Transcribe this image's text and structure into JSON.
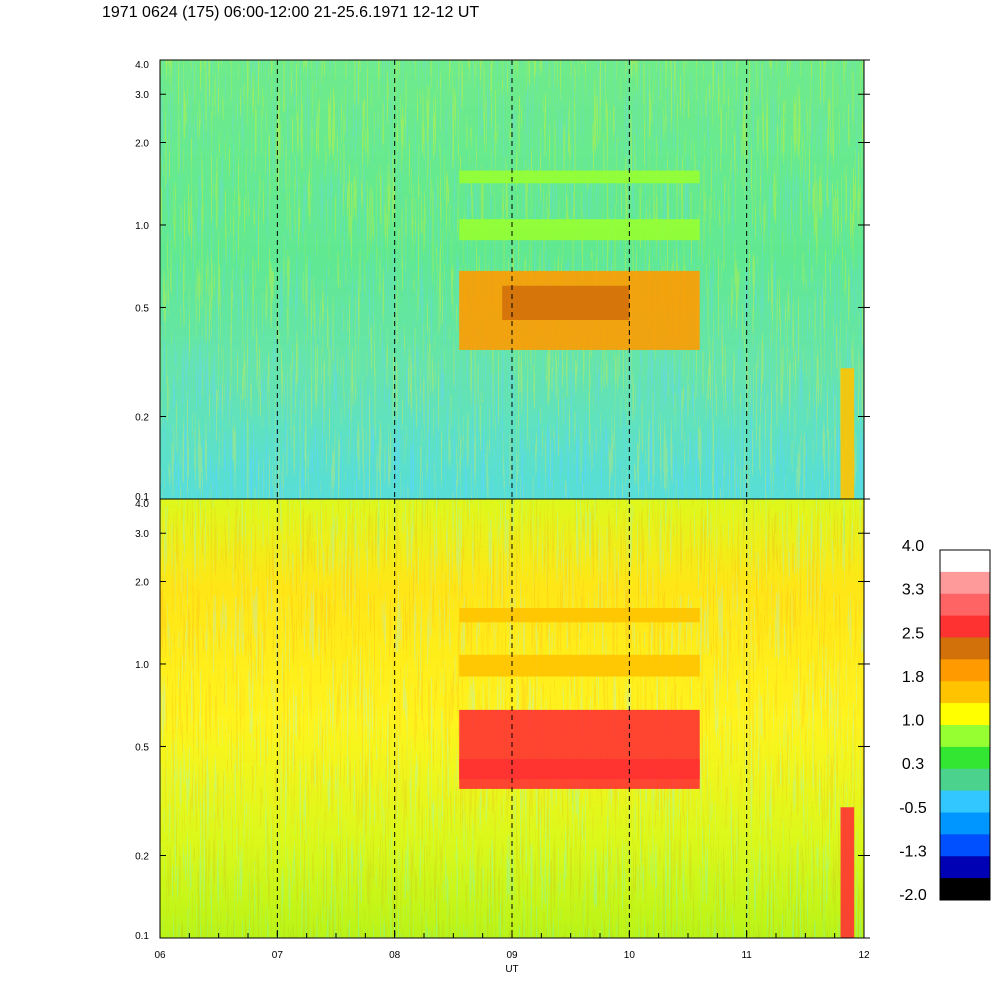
{
  "title": "1971 0624 (175) 06:00-12:00 21-25.6.1971  12-12 UT",
  "chart_data": [
    {
      "type": "heatmap",
      "panel": "upper",
      "x_range": [
        "06:00",
        "12:00"
      ],
      "y_scale": "log",
      "ylim": [
        0.1,
        4.0
      ],
      "y_ticks": [
        "0.1",
        "0.2",
        "0.5",
        "1.0",
        "2.0",
        "3.0",
        "4.0"
      ],
      "x_ticks": [],
      "bands": [
        {
          "y_range": [
            0.35,
            0.68
          ],
          "x_range": [
            "08:33",
            "10:36"
          ],
          "level": 1.8
        },
        {
          "y_range": [
            0.45,
            0.6
          ],
          "x_range": [
            "08:55",
            "10:00"
          ],
          "level": 2.2
        },
        {
          "y_range": [
            0.88,
            1.05
          ],
          "x_range": [
            "08:33",
            "10:36"
          ],
          "level": 1.0
        },
        {
          "y_range": [
            1.42,
            1.58
          ],
          "x_range": [
            "08:33",
            "10:36"
          ],
          "level": 1.0
        },
        {
          "y_range": [
            0.1,
            0.3
          ],
          "x_range": [
            "11:48",
            "11:55"
          ],
          "level": 1.6
        }
      ]
    },
    {
      "type": "heatmap",
      "panel": "lower",
      "x_range": [
        "06:00",
        "12:00"
      ],
      "y_scale": "log",
      "ylim": [
        0.1,
        4.0
      ],
      "y_ticks": [
        "0.1",
        "0.2",
        "0.5",
        "1.0",
        "2.0",
        "3.0",
        "4.0"
      ],
      "x_ticks": [
        "06",
        "07",
        "08",
        "09",
        "10",
        "11",
        "12"
      ],
      "xlabel": "UT",
      "bands": [
        {
          "y_range": [
            0.35,
            0.68
          ],
          "x_range": [
            "08:33",
            "10:36"
          ],
          "level": 2.8
        },
        {
          "y_range": [
            0.38,
            0.45
          ],
          "x_range": [
            "08:33",
            "10:36"
          ],
          "level": 2.6
        },
        {
          "y_range": [
            0.9,
            1.08
          ],
          "x_range": [
            "08:33",
            "10:36"
          ],
          "level": 1.6
        },
        {
          "y_range": [
            1.42,
            1.6
          ],
          "x_range": [
            "08:33",
            "10:36"
          ],
          "level": 1.6
        },
        {
          "y_range": [
            0.1,
            0.3
          ],
          "x_range": [
            "11:48",
            "11:55"
          ],
          "level": 2.6
        }
      ]
    }
  ],
  "colorbar": {
    "labels": [
      "4.0",
      "3.3",
      "2.5",
      "1.8",
      "1.0",
      "0.3",
      "-0.5",
      "-1.3",
      "-2.0"
    ],
    "colors": [
      "#ffffff",
      "#ff9a9a",
      "#ff6464",
      "#ff3232",
      "#d2700a",
      "#ff9b00",
      "#ffc300",
      "#ffff00",
      "#96ff32",
      "#32e632",
      "#4bd28c",
      "#32c8ff",
      "#0096ff",
      "#0050ff",
      "#0000b4",
      "#000000"
    ]
  }
}
